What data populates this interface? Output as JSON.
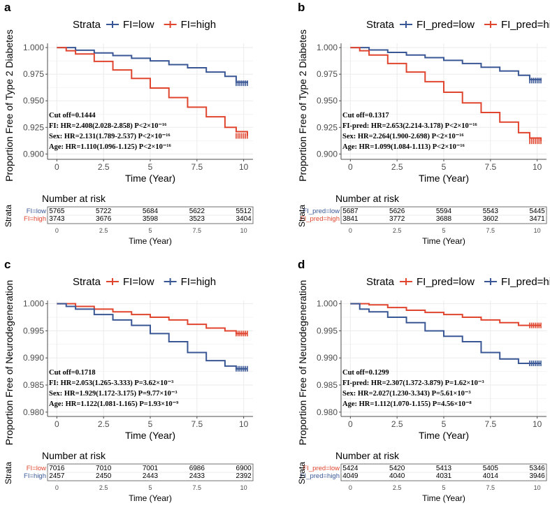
{
  "colors": {
    "blue": "#3a5795",
    "red": "#e0452f",
    "grid": "#ebebeb",
    "axis": "#4d4d4d"
  },
  "chart_data": [
    {
      "type": "line",
      "panel_label": "a",
      "legend_title": "Strata",
      "ylabel": "Proportion Free of Type 2 Diabetes",
      "xlabel": "Time (Year)",
      "xlim": [
        -0.5,
        10.5
      ],
      "ylim": [
        0.895,
        1.004
      ],
      "xticks": [
        0,
        2.5,
        5,
        7.5,
        10
      ],
      "xtick_labels": [
        "0",
        "2.5",
        "5",
        "7.5",
        "10"
      ],
      "yticks": [
        0.9,
        0.925,
        0.95,
        0.975,
        1.0
      ],
      "ytick_labels": [
        "0.900",
        "0.925",
        "0.950",
        "0.975",
        "1.000"
      ],
      "series": [
        {
          "name": "FI=low",
          "color": "blue",
          "x": [
            0,
            1,
            2,
            3,
            4,
            5,
            6,
            7,
            8,
            9,
            9.6,
            10.2
          ],
          "y": [
            1.0,
            0.9975,
            0.995,
            0.9925,
            0.99,
            0.9875,
            0.984,
            0.981,
            0.977,
            0.973,
            0.9675,
            0.9665
          ]
        },
        {
          "name": "FI=high",
          "color": "red",
          "x": [
            0,
            0.5,
            1,
            2,
            3,
            4,
            5,
            6,
            7,
            8,
            9,
            9.6,
            10.2
          ],
          "y": [
            1.0,
            0.997,
            0.994,
            0.987,
            0.979,
            0.971,
            0.962,
            0.953,
            0.944,
            0.935,
            0.925,
            0.921,
            0.917
          ]
        }
      ],
      "annotation": {
        "cutoff": "Cut off=0.1444",
        "line1": "FI: HR=2.408(2.028-2.858)  P<2×10⁻¹⁶",
        "line2": "Sex: HR=2.131(1.789-2.537) P<2×10⁻¹⁶",
        "line3": "Age: HR=1.110(1.096-1.125) P<2×10⁻¹⁶"
      },
      "risk": {
        "title": "Number at risk",
        "ylabel": "Strata",
        "xlabel": "Time (Year)",
        "rows": [
          {
            "label": "FI=low",
            "color": "blue",
            "values": [
              "5765",
              "5722",
              "5684",
              "5622",
              "5512"
            ]
          },
          {
            "label": "FI=high",
            "color": "red",
            "values": [
              "3743",
              "3676",
              "3598",
              "3523",
              "3404"
            ]
          }
        ]
      }
    },
    {
      "type": "line",
      "panel_label": "b",
      "legend_title": "Strata",
      "ylabel": "Proportion Free of Type 2 Diabetes",
      "xlabel": "Time (Year)",
      "xlim": [
        -0.5,
        10.5
      ],
      "ylim": [
        0.895,
        1.004
      ],
      "xticks": [
        0,
        2.5,
        5,
        7.5,
        10
      ],
      "xtick_labels": [
        "0",
        "2.5",
        "5",
        "7.5",
        "10"
      ],
      "yticks": [
        0.9,
        0.925,
        0.95,
        0.975,
        1.0
      ],
      "ytick_labels": [
        "0.900",
        "0.925",
        "0.950",
        "0.975",
        "1.000"
      ],
      "series": [
        {
          "name": "FI_pred=low",
          "color": "blue",
          "x": [
            0,
            1,
            2,
            3,
            4,
            5,
            6,
            7,
            8,
            9,
            9.6,
            10.2
          ],
          "y": [
            1.0,
            0.9978,
            0.9955,
            0.993,
            0.9905,
            0.988,
            0.985,
            0.9815,
            0.978,
            0.974,
            0.97,
            0.969
          ]
        },
        {
          "name": "FI_pred=high",
          "color": "red",
          "x": [
            0,
            0.5,
            1,
            2,
            3,
            4,
            5,
            6,
            7,
            8,
            9,
            9.6,
            10.2
          ],
          "y": [
            1.0,
            0.997,
            0.993,
            0.985,
            0.977,
            0.968,
            0.958,
            0.948,
            0.939,
            0.93,
            0.92,
            0.915,
            0.912
          ]
        }
      ],
      "annotation": {
        "cutoff": "Cut off=0.1317",
        "line1": "FI-pred: HR=2.653(2.214-3.178)  P<2×10⁻¹⁶",
        "line2": "Sex: HR=2.264(1.900-2.698)  P<2×10⁻¹⁶",
        "line3": "Age: HR=1.099(1.084-1.113)  P<2×10⁻¹⁶"
      },
      "risk": {
        "title": "Number at risk",
        "ylabel": "Strata",
        "xlabel": "Time (Year)",
        "rows": [
          {
            "label": "FI_pred=low",
            "color": "blue",
            "values": [
              "5687",
              "5626",
              "5594",
              "5543",
              "5445"
            ]
          },
          {
            "label": "FI_pred=high",
            "color": "red",
            "values": [
              "3841",
              "3772",
              "3688",
              "3602",
              "3471"
            ]
          }
        ]
      }
    },
    {
      "type": "line",
      "panel_label": "c",
      "legend_title": "Strata",
      "ylabel": "Proportion Free of Neurodegeneration",
      "xlabel": "Time (Year)",
      "xlim": [
        -0.5,
        10.5
      ],
      "ylim": [
        0.9792,
        1.0006
      ],
      "xticks": [
        0,
        2.5,
        5,
        7.5,
        10
      ],
      "xtick_labels": [
        "0",
        "2.5",
        "5",
        "7.5",
        "10"
      ],
      "yticks": [
        0.98,
        0.985,
        0.99,
        0.995,
        1.0
      ],
      "ytick_labels": [
        "0.980",
        "0.985",
        "0.990",
        "0.995",
        "1.000"
      ],
      "series": [
        {
          "name": "FI=low",
          "color": "red",
          "x": [
            0,
            1,
            2,
            3,
            4,
            5,
            6,
            7,
            8,
            9,
            9.6,
            10.2
          ],
          "y": [
            1.0,
            0.9995,
            0.999,
            0.9985,
            0.998,
            0.9975,
            0.997,
            0.9962,
            0.9955,
            0.995,
            0.9945,
            0.9945
          ]
        },
        {
          "name": "FI=high",
          "color": "blue",
          "x": [
            0,
            0.5,
            1,
            2,
            3,
            4,
            5,
            6,
            7,
            8,
            9,
            9.6,
            10.2
          ],
          "y": [
            1.0,
            0.9995,
            0.999,
            0.998,
            0.997,
            0.996,
            0.9945,
            0.993,
            0.991,
            0.9895,
            0.9885,
            0.988,
            0.988
          ]
        }
      ],
      "annotation": {
        "cutoff": "Cut off=0.1718",
        "line1": "FI: HR=2.053(1.265-3.333)  P=3.62×10⁻³",
        "line2": "Sex: HR=1.929(1.172-3.175) P=9.77×10⁻³",
        "line3": "Age: HR=1.122(1.081-1.165) P=1.93×10⁻⁹"
      },
      "risk": {
        "title": "Number at risk",
        "ylabel": "Strata",
        "xlabel": "Time (Year)",
        "rows": [
          {
            "label": "FI=low",
            "color": "red",
            "values": [
              "7016",
              "7010",
              "7001",
              "6986",
              "6900"
            ]
          },
          {
            "label": "FI=high",
            "color": "blue",
            "values": [
              "2457",
              "2450",
              "2443",
              "2433",
              "2392"
            ]
          }
        ]
      }
    },
    {
      "type": "line",
      "panel_label": "d",
      "legend_title": "Strata",
      "ylabel": "Proportion Free of Neurodegeneration",
      "xlabel": "Time (Year)",
      "xlim": [
        -0.5,
        10.5
      ],
      "ylim": [
        0.9792,
        1.0006
      ],
      "xticks": [
        0,
        2.5,
        5,
        7.5,
        10
      ],
      "xtick_labels": [
        "0",
        "2.5",
        "5",
        "7.5",
        "10"
      ],
      "yticks": [
        0.98,
        0.985,
        0.99,
        0.995,
        1.0
      ],
      "ytick_labels": [
        "0.980",
        "0.985",
        "0.990",
        "0.995",
        "1.000"
      ],
      "series": [
        {
          "name": "FI_pred=low",
          "color": "red",
          "x": [
            0,
            1,
            2,
            3,
            4,
            5,
            6,
            7,
            8,
            9,
            9.6,
            10.2
          ],
          "y": [
            1.0,
            0.9998,
            0.9993,
            0.9988,
            0.9984,
            0.998,
            0.9975,
            0.997,
            0.9965,
            0.996,
            0.996,
            0.996
          ]
        },
        {
          "name": "FI_pred=high",
          "color": "blue",
          "x": [
            0,
            0.5,
            1,
            2,
            3,
            4,
            5,
            6,
            7,
            8,
            9,
            9.6,
            10.2
          ],
          "y": [
            1.0,
            0.999,
            0.9985,
            0.9975,
            0.9965,
            0.995,
            0.994,
            0.993,
            0.991,
            0.9898,
            0.989,
            0.989,
            0.989
          ]
        }
      ],
      "annotation": {
        "cutoff": "Cut off=0.1299",
        "line1": "FI-pred: HR=2.307(1.372-3.879)  P=1.62×10⁻³",
        "line2": "Sex: HR=2.027(1.230-3.343) P=5.61×10⁻³",
        "line3": "Age: HR=1.112(1.070-1.155) P=4.56×10⁻⁸"
      },
      "risk": {
        "title": "Number at risk",
        "ylabel": "Strata",
        "xlabel": "Time (Year)",
        "rows": [
          {
            "label": "FI_pred=low",
            "color": "red",
            "values": [
              "5424",
              "5420",
              "5413",
              "5405",
              "5346"
            ]
          },
          {
            "label": "FI_pred=high",
            "color": "blue",
            "values": [
              "4049",
              "4040",
              "4031",
              "4014",
              "3946"
            ]
          }
        ]
      }
    }
  ]
}
